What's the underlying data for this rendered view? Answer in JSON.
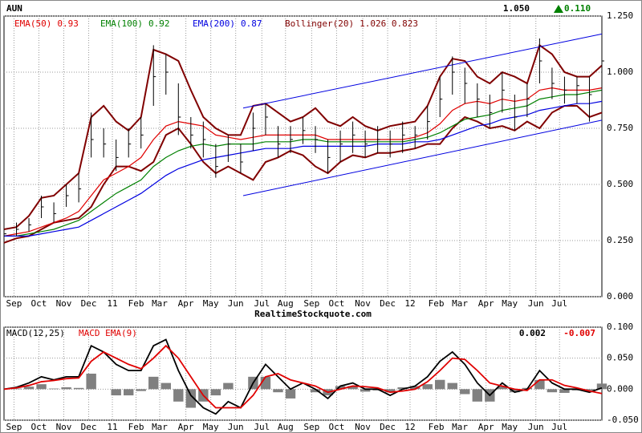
{
  "chart_data": [
    {
      "type": "stock",
      "title": "AUN",
      "last_price": "1.050",
      "change": "0.110",
      "change_color": "#008000",
      "source": "RealtimeStockquote.com",
      "xlim": [
        0,
        48
      ],
      "ylim": [
        0,
        1.25
      ],
      "grid": true,
      "bar_color": "#000000",
      "yticks": [
        {
          "value": 0,
          "label": "0.000"
        },
        {
          "value": 0.25,
          "label": "0.250"
        },
        {
          "value": 0.5,
          "label": "0.500"
        },
        {
          "value": 0.75,
          "label": "0.750"
        },
        {
          "value": 1,
          "label": "1.000"
        },
        {
          "value": 1.25,
          "label": "1.250"
        }
      ],
      "xticks": [
        {
          "value": 0.8,
          "label": "Sep"
        },
        {
          "value": 2.8,
          "label": "Oct"
        },
        {
          "value": 4.8,
          "label": "Nov"
        },
        {
          "value": 6.8,
          "label": "Dec"
        },
        {
          "value": 8.7,
          "label": "11"
        },
        {
          "value": 10.6,
          "label": "Feb"
        },
        {
          "value": 12.5,
          "label": "Mar"
        },
        {
          "value": 14.6,
          "label": "Apr"
        },
        {
          "value": 16.6,
          "label": "May"
        },
        {
          "value": 18.6,
          "label": "Jun"
        },
        {
          "value": 20.7,
          "label": "Jul"
        },
        {
          "value": 22.6,
          "label": "Aug"
        },
        {
          "value": 24.7,
          "label": "Sep"
        },
        {
          "value": 26.7,
          "label": "Oct"
        },
        {
          "value": 28.8,
          "label": "Nov"
        },
        {
          "value": 30.8,
          "label": "Dec"
        },
        {
          "value": 32.6,
          "label": "12"
        },
        {
          "value": 34.7,
          "label": "Feb"
        },
        {
          "value": 36.6,
          "label": "Mar"
        },
        {
          "value": 38.7,
          "label": "Apr"
        },
        {
          "value": 40.6,
          "label": "May"
        },
        {
          "value": 42.7,
          "label": "Jun"
        },
        {
          "value": 44.6,
          "label": "Jul"
        }
      ],
      "x": [
        0,
        1,
        2,
        3,
        4,
        5,
        6,
        7,
        8,
        9,
        10,
        11,
        12,
        13,
        14,
        15,
        16,
        17,
        18,
        19,
        20,
        21,
        22,
        23,
        24,
        25,
        26,
        27,
        28,
        29,
        30,
        31,
        32,
        33,
        34,
        35,
        36,
        37,
        38,
        39,
        40,
        41,
        42,
        43,
        44,
        45,
        46,
        47,
        48
      ],
      "high": [
        0.3,
        0.33,
        0.35,
        0.45,
        0.42,
        0.5,
        0.55,
        0.82,
        0.75,
        0.7,
        0.75,
        0.8,
        1.12,
        1.08,
        0.95,
        0.8,
        0.78,
        0.68,
        0.72,
        0.68,
        0.82,
        0.86,
        0.76,
        0.76,
        0.8,
        0.76,
        0.7,
        0.74,
        0.78,
        0.74,
        0.76,
        0.74,
        0.78,
        0.76,
        0.85,
        0.98,
        1.07,
        1.02,
        0.95,
        0.9,
        1.0,
        0.9,
        0.95,
        1.15,
        1.02,
        0.98,
        0.98,
        0.98,
        1.06
      ],
      "low": [
        0.25,
        0.27,
        0.29,
        0.35,
        0.33,
        0.4,
        0.42,
        0.62,
        0.62,
        0.56,
        0.62,
        0.66,
        0.85,
        0.9,
        0.72,
        0.66,
        0.62,
        0.53,
        0.6,
        0.55,
        0.65,
        0.72,
        0.62,
        0.64,
        0.68,
        0.64,
        0.55,
        0.6,
        0.64,
        0.62,
        0.64,
        0.62,
        0.64,
        0.66,
        0.7,
        0.8,
        0.9,
        0.86,
        0.8,
        0.75,
        0.82,
        0.74,
        0.8,
        0.95,
        0.88,
        0.86,
        0.86,
        0.78,
        0.88
      ],
      "close": [
        0.28,
        0.3,
        0.32,
        0.4,
        0.37,
        0.45,
        0.48,
        0.7,
        0.68,
        0.62,
        0.68,
        0.72,
        0.98,
        1.0,
        0.8,
        0.72,
        0.7,
        0.58,
        0.68,
        0.6,
        0.75,
        0.8,
        0.68,
        0.7,
        0.74,
        0.7,
        0.62,
        0.68,
        0.72,
        0.68,
        0.7,
        0.68,
        0.72,
        0.72,
        0.78,
        0.88,
        1.0,
        0.95,
        0.88,
        0.82,
        0.92,
        0.8,
        0.88,
        1.05,
        0.95,
        0.92,
        0.94,
        0.9,
        1.05
      ],
      "series": [
        {
          "name": "EMA(50)",
          "legend_value": "0.93",
          "color": "#e00000",
          "values": [
            0.27,
            0.28,
            0.29,
            0.31,
            0.33,
            0.35,
            0.38,
            0.45,
            0.52,
            0.55,
            0.58,
            0.62,
            0.7,
            0.76,
            0.78,
            0.77,
            0.76,
            0.72,
            0.71,
            0.7,
            0.71,
            0.72,
            0.72,
            0.72,
            0.72,
            0.72,
            0.7,
            0.7,
            0.7,
            0.7,
            0.7,
            0.7,
            0.7,
            0.71,
            0.73,
            0.77,
            0.83,
            0.86,
            0.87,
            0.86,
            0.88,
            0.87,
            0.88,
            0.92,
            0.93,
            0.92,
            0.92,
            0.92,
            0.93
          ]
        },
        {
          "name": "EMA(100)",
          "legend_value": "0.92",
          "color": "#008000",
          "values": [
            0.27,
            0.27,
            0.28,
            0.29,
            0.3,
            0.32,
            0.34,
            0.38,
            0.42,
            0.46,
            0.49,
            0.52,
            0.58,
            0.62,
            0.65,
            0.67,
            0.68,
            0.67,
            0.68,
            0.68,
            0.68,
            0.69,
            0.69,
            0.69,
            0.7,
            0.7,
            0.69,
            0.69,
            0.69,
            0.69,
            0.69,
            0.69,
            0.69,
            0.7,
            0.71,
            0.73,
            0.76,
            0.79,
            0.8,
            0.81,
            0.83,
            0.84,
            0.85,
            0.88,
            0.89,
            0.9,
            0.9,
            0.91,
            0.92
          ]
        },
        {
          "name": "EMA(200)",
          "legend_value": "0.87",
          "color": "#0000e0",
          "values": [
            0.27,
            0.27,
            0.27,
            0.28,
            0.29,
            0.3,
            0.31,
            0.34,
            0.37,
            0.4,
            0.43,
            0.46,
            0.5,
            0.54,
            0.57,
            0.59,
            0.61,
            0.62,
            0.63,
            0.64,
            0.65,
            0.66,
            0.66,
            0.66,
            0.67,
            0.67,
            0.67,
            0.67,
            0.67,
            0.67,
            0.68,
            0.68,
            0.68,
            0.69,
            0.69,
            0.7,
            0.72,
            0.74,
            0.76,
            0.77,
            0.79,
            0.8,
            0.81,
            0.83,
            0.84,
            0.85,
            0.86,
            0.86,
            0.87
          ]
        }
      ],
      "bands": {
        "name": "Bollinger(20)",
        "legend_value": "1.026 0.823",
        "color": "#800000",
        "upper": [
          0.3,
          0.31,
          0.36,
          0.44,
          0.45,
          0.5,
          0.55,
          0.8,
          0.85,
          0.78,
          0.74,
          0.8,
          1.1,
          1.08,
          1.05,
          0.92,
          0.8,
          0.75,
          0.72,
          0.72,
          0.85,
          0.86,
          0.82,
          0.78,
          0.8,
          0.84,
          0.78,
          0.76,
          0.8,
          0.76,
          0.74,
          0.76,
          0.77,
          0.78,
          0.85,
          0.98,
          1.06,
          1.05,
          0.98,
          0.95,
          1.0,
          0.98,
          0.95,
          1.12,
          1.08,
          1.0,
          0.98,
          0.98,
          1.03
        ],
        "lower": [
          0.24,
          0.26,
          0.27,
          0.3,
          0.33,
          0.34,
          0.35,
          0.4,
          0.5,
          0.58,
          0.58,
          0.56,
          0.6,
          0.72,
          0.75,
          0.68,
          0.6,
          0.55,
          0.58,
          0.55,
          0.52,
          0.6,
          0.62,
          0.65,
          0.63,
          0.58,
          0.55,
          0.6,
          0.63,
          0.62,
          0.64,
          0.64,
          0.65,
          0.66,
          0.68,
          0.68,
          0.75,
          0.8,
          0.78,
          0.75,
          0.76,
          0.74,
          0.78,
          0.75,
          0.82,
          0.85,
          0.85,
          0.8,
          0.82
        ]
      },
      "trend_lines": [
        {
          "color": "#0000e0",
          "x": [
            19.2,
            48
          ],
          "y": [
            0.84,
            1.17
          ]
        },
        {
          "color": "#0000e0",
          "x": [
            19.2,
            48
          ],
          "y": [
            0.45,
            0.786
          ]
        }
      ]
    },
    {
      "type": "macd",
      "xlim": [
        0,
        48
      ],
      "ylim": [
        -0.05,
        0.1
      ],
      "grid": true,
      "yticks": [
        {
          "value": 0.1,
          "label": "0.100"
        },
        {
          "value": 0.05,
          "label": "0.050"
        },
        {
          "value": 0,
          "label": "0.000"
        },
        {
          "value": -0.05,
          "label": "-0.050"
        }
      ],
      "xticks": [
        {
          "value": 0.8,
          "label": "Sep"
        },
        {
          "value": 2.8,
          "label": "Oct"
        },
        {
          "value": 4.8,
          "label": "Nov"
        },
        {
          "value": 6.8,
          "label": "Dec"
        },
        {
          "value": 8.7,
          "label": "11"
        },
        {
          "value": 10.6,
          "label": "Feb"
        },
        {
          "value": 12.5,
          "label": "Mar"
        },
        {
          "value": 14.6,
          "label": "Apr"
        },
        {
          "value": 16.6,
          "label": "May"
        },
        {
          "value": 18.6,
          "label": "Jun"
        },
        {
          "value": 20.7,
          "label": "Jul"
        },
        {
          "value": 22.6,
          "label": "Aug"
        },
        {
          "value": 24.7,
          "label": "Sep"
        },
        {
          "value": 26.7,
          "label": "Oct"
        },
        {
          "value": 28.8,
          "label": "Nov"
        },
        {
          "value": 30.8,
          "label": "Dec"
        },
        {
          "value": 32.6,
          "label": "12"
        },
        {
          "value": 34.7,
          "label": "Feb"
        },
        {
          "value": 36.6,
          "label": "Mar"
        },
        {
          "value": 38.7,
          "label": "Apr"
        },
        {
          "value": 40.6,
          "label": "May"
        },
        {
          "value": 42.7,
          "label": "Jun"
        },
        {
          "value": 44.6,
          "label": "Jul"
        }
      ],
      "x": [
        0,
        1,
        2,
        3,
        4,
        5,
        6,
        7,
        8,
        9,
        10,
        11,
        12,
        13,
        14,
        15,
        16,
        17,
        18,
        19,
        20,
        21,
        22,
        23,
        24,
        25,
        26,
        27,
        28,
        29,
        30,
        31,
        32,
        33,
        34,
        35,
        36,
        37,
        38,
        39,
        40,
        41,
        42,
        43,
        44,
        45,
        46,
        47,
        48
      ],
      "histogram": {
        "color": "#808080",
        "values": [
          0,
          0.001,
          0.004,
          0.008,
          0.001,
          0.003,
          0.002,
          0.025,
          0,
          -0.01,
          -0.01,
          -0.003,
          0.02,
          0.01,
          -0.02,
          -0.03,
          -0.02,
          -0.01,
          0.01,
          0,
          0.02,
          0.02,
          -0.005,
          -0.015,
          0,
          -0.005,
          -0.01,
          0.005,
          0.005,
          -0.004,
          -0.002,
          -0.005,
          0.003,
          0.005,
          0.008,
          0.015,
          0.01,
          -0.008,
          -0.02,
          -0.02,
          0.005,
          -0.005,
          0.002,
          0.015,
          -0.005,
          -0.006,
          -0.002,
          -0.002,
          0.009
        ]
      },
      "series": [
        {
          "name": "MACD(12,25)",
          "legend_value": "0.002",
          "color": "#000000",
          "values": [
            0,
            0.003,
            0.01,
            0.02,
            0.015,
            0.02,
            0.02,
            0.07,
            0.06,
            0.04,
            0.03,
            0.03,
            0.07,
            0.08,
            0.03,
            -0.01,
            -0.03,
            -0.04,
            -0.02,
            -0.03,
            0.01,
            0.04,
            0.02,
            0,
            0.01,
            0,
            -0.015,
            0.005,
            0.01,
            0,
            0,
            -0.01,
            0,
            0.005,
            0.02,
            0.045,
            0.06,
            0.04,
            0.01,
            -0.01,
            0.01,
            -0.005,
            0,
            0.03,
            0.01,
            0,
            0,
            -0.005,
            0.002
          ]
        },
        {
          "name": "MACD EMA(9)",
          "legend_value": "-0.007",
          "color": "#e00000",
          "values": [
            0,
            0.002,
            0.006,
            0.012,
            0.014,
            0.017,
            0.018,
            0.045,
            0.06,
            0.05,
            0.04,
            0.033,
            0.05,
            0.07,
            0.05,
            0.02,
            -0.01,
            -0.03,
            -0.03,
            -0.03,
            -0.01,
            0.02,
            0.025,
            0.015,
            0.01,
            0.005,
            -0.005,
            0,
            0.005,
            0.004,
            0.002,
            -0.005,
            -0.003,
            0,
            0.012,
            0.03,
            0.05,
            0.048,
            0.03,
            0.01,
            0.005,
            0,
            -0.002,
            0.015,
            0.015,
            0.006,
            0.002,
            -0.003,
            -0.007
          ]
        }
      ]
    }
  ]
}
